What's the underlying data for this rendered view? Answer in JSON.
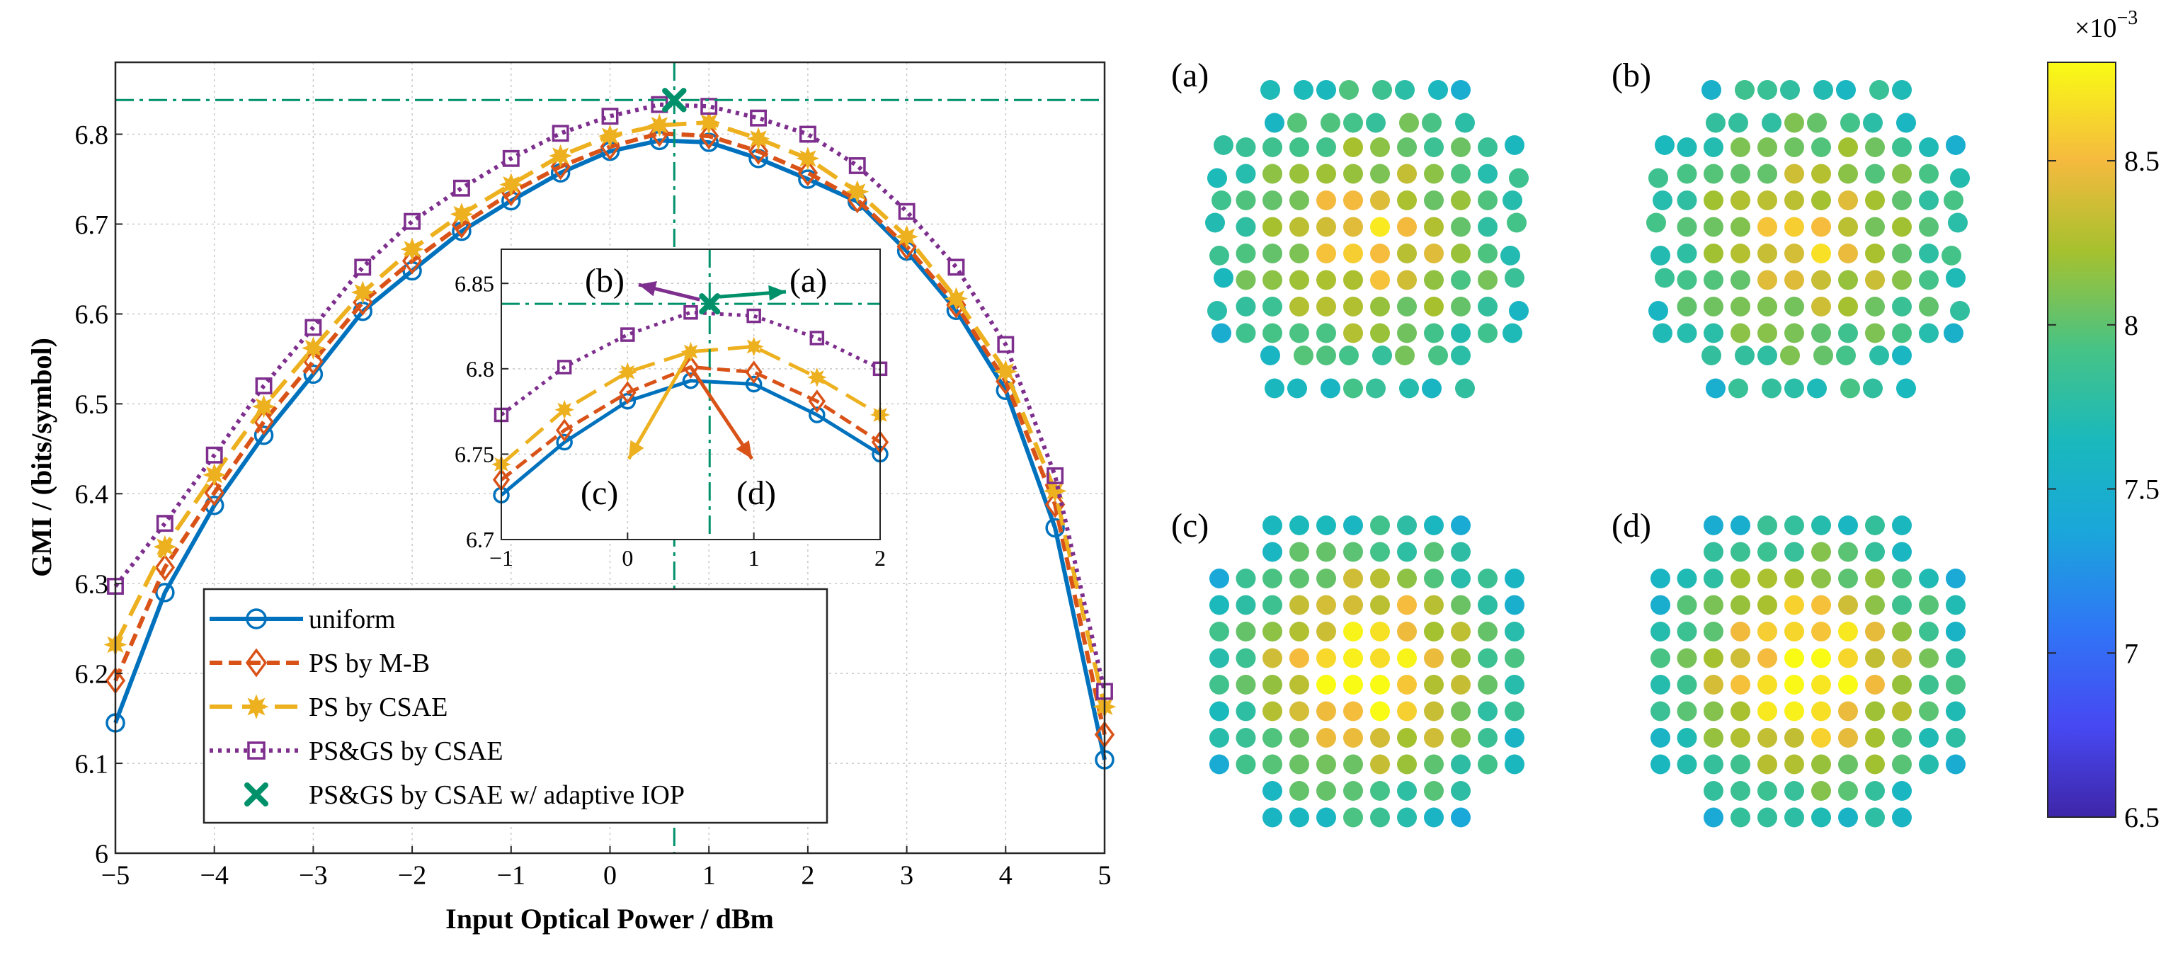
{
  "main": {
    "xlabel": "Input Optical Power / dBm",
    "ylabel": "GMI / (bits/symbol)",
    "xlim": [
      -5,
      5
    ],
    "ylim": [
      6,
      6.88
    ],
    "xticks": [
      -5,
      -4,
      -3,
      -2,
      -1,
      0,
      1,
      2,
      3,
      4,
      5
    ],
    "xtick_labels": [
      "−5",
      "−4",
      "−3",
      "−2",
      "−1",
      "0",
      "1",
      "2",
      "3",
      "4",
      "5"
    ],
    "yticks": [
      6,
      6.1,
      6.2,
      6.3,
      6.4,
      6.5,
      6.6,
      6.7,
      6.8
    ],
    "ytick_labels": [
      "6",
      "6.1",
      "6.2",
      "6.3",
      "6.4",
      "6.5",
      "6.6",
      "6.7",
      "6.8"
    ],
    "opt_x": 0.65,
    "opt_y": 6.838
  },
  "chart_data": {
    "type": "line",
    "x": [
      -5,
      -4.5,
      -4,
      -3.5,
      -3,
      -2.5,
      -2,
      -1.5,
      -1,
      -0.5,
      0,
      0.5,
      1,
      1.5,
      2,
      2.5,
      3,
      3.5,
      4,
      4.5,
      5
    ],
    "series": [
      {
        "name": "uniform",
        "color": "#0072BD",
        "marker": "circle",
        "values": [
          6.145,
          6.29,
          6.387,
          6.465,
          6.533,
          6.603,
          6.648,
          6.692,
          6.726,
          6.757,
          6.781,
          6.793,
          6.791,
          6.773,
          6.75,
          6.725,
          6.67,
          6.604,
          6.515,
          6.362,
          6.104
        ]
      },
      {
        "name": "PS by M-B",
        "color": "#D95319",
        "marker": "diamond",
        "values": [
          6.192,
          6.318,
          6.401,
          6.48,
          6.547,
          6.613,
          6.659,
          6.699,
          6.735,
          6.764,
          6.786,
          6.801,
          6.798,
          6.781,
          6.757,
          6.727,
          6.675,
          6.61,
          6.525,
          6.388,
          6.132
        ]
      },
      {
        "name": "PS by CSAE",
        "color": "#EDB120",
        "marker": "star",
        "values": [
          6.232,
          6.341,
          6.421,
          6.497,
          6.562,
          6.624,
          6.672,
          6.711,
          6.744,
          6.776,
          6.798,
          6.81,
          6.813,
          6.795,
          6.773,
          6.736,
          6.686,
          6.617,
          6.536,
          6.403,
          6.163
        ]
      },
      {
        "name": "PS&GS by CSAE",
        "color": "#7E2F8E",
        "marker": "square",
        "values": [
          6.297,
          6.367,
          6.443,
          6.52,
          6.585,
          6.652,
          6.703,
          6.74,
          6.773,
          6.801,
          6.82,
          6.833,
          6.831,
          6.818,
          6.8,
          6.765,
          6.714,
          6.652,
          6.566,
          6.42,
          6.18
        ]
      }
    ],
    "optimum": {
      "name": "PS&GS by CSAE w/ adaptive IOP",
      "x": 0.65,
      "y": 6.838,
      "color": "#00916A",
      "marker": "x"
    },
    "xlabel": "Input Optical Power / dBm",
    "ylabel": "GMI / (bits/symbol)",
    "xlim": [
      -5,
      5
    ],
    "ylim": [
      6,
      6.88
    ],
    "grid": true,
    "legend_location": "bottom-left"
  },
  "inset": {
    "xlim": [
      -1,
      2
    ],
    "ylim": [
      6.7,
      6.87
    ],
    "xticks": [
      -1,
      0,
      1,
      2
    ],
    "xtick_labels": [
      "−1",
      "0",
      "1",
      "2"
    ],
    "yticks": [
      6.7,
      6.75,
      6.8,
      6.85
    ],
    "ytick_labels": [
      "6.7",
      "6.75",
      "6.8",
      "6.85"
    ],
    "labels": {
      "a": "(a)",
      "b": "(b)",
      "c": "(c)",
      "d": "(d)"
    }
  },
  "constellations": {
    "panel_labels": [
      "(a)",
      "(b)",
      "(c)",
      "(d)"
    ],
    "colorbar": {
      "ticks": [
        6.5,
        7,
        7.5,
        8,
        8.5
      ],
      "tick_labels": [
        "6.5",
        "7",
        "7.5",
        "8",
        "8.5"
      ],
      "min": 6.5,
      "max": 8.8,
      "exponent_base": "×10",
      "exponent_power": "−3"
    }
  }
}
